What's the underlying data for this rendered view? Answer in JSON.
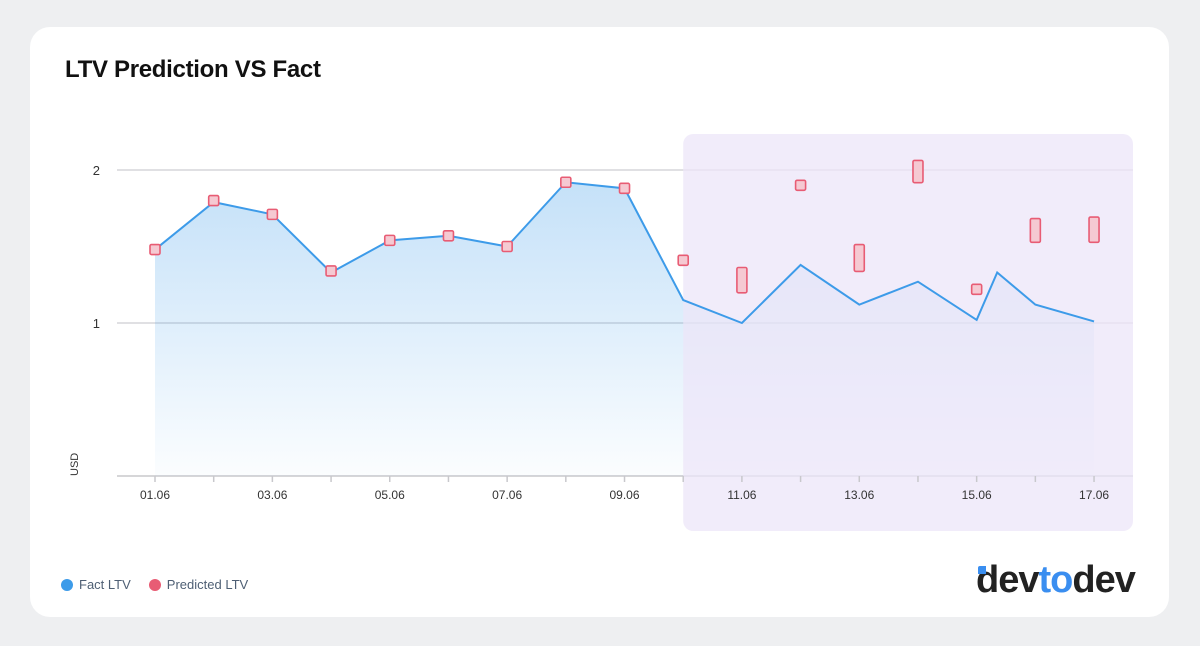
{
  "chart_data": {
    "type": "line",
    "title": "LTV Prediction VS Fact",
    "ylabel": "USD",
    "xlabel": "",
    "ylim": [
      0,
      2.3
    ],
    "yticks": [
      1,
      2
    ],
    "xticks": [
      "01.06",
      "03.06",
      "05.06",
      "07.06",
      "09.06",
      "11.06",
      "13.06",
      "15.06",
      "17.06"
    ],
    "grid": true,
    "legend_position": "bottom-left",
    "forecast_region": {
      "from_day": 10,
      "to_day": 17,
      "color": "#ece6f8"
    },
    "series": [
      {
        "name": "Fact LTV",
        "style": "area-line",
        "color": "#3d9be9",
        "x": [
          1,
          2,
          3,
          4,
          5,
          6,
          7,
          8,
          9,
          10,
          11,
          12,
          13,
          14,
          15,
          15.35,
          16,
          17
        ],
        "values": [
          1.48,
          1.79,
          1.71,
          1.33,
          1.54,
          1.57,
          1.5,
          1.92,
          1.88,
          1.15,
          1.0,
          1.38,
          1.12,
          1.27,
          1.02,
          1.33,
          1.12,
          1.01
        ]
      },
      {
        "name": "Predicted LTV",
        "style": "markers",
        "color": "#e85c74",
        "x": [
          1,
          2,
          3,
          4,
          5,
          6,
          7,
          8,
          9,
          10,
          11,
          12,
          13,
          14,
          15,
          16,
          17
        ],
        "values": [
          1.48,
          1.8,
          1.71,
          1.34,
          1.54,
          1.57,
          1.5,
          1.92,
          1.88,
          1.41,
          1.28,
          1.9,
          1.43,
          1.99,
          1.22,
          1.61,
          1.61
        ],
        "ranges": [
          [
            1.48,
            1.48
          ],
          [
            1.8,
            1.8
          ],
          [
            1.71,
            1.71
          ],
          [
            1.34,
            1.34
          ],
          [
            1.54,
            1.54
          ],
          [
            1.57,
            1.57
          ],
          [
            1.5,
            1.5
          ],
          [
            1.92,
            1.92
          ],
          [
            1.88,
            1.88
          ],
          [
            1.41,
            1.41
          ],
          [
            1.23,
            1.33
          ],
          [
            1.9,
            1.9
          ],
          [
            1.37,
            1.48
          ],
          [
            1.95,
            2.03
          ],
          [
            1.22,
            1.22
          ],
          [
            1.56,
            1.65
          ],
          [
            1.56,
            1.66
          ]
        ]
      }
    ]
  },
  "logo": {
    "part1": "dev",
    "part2": "to",
    "part3": "dev"
  }
}
